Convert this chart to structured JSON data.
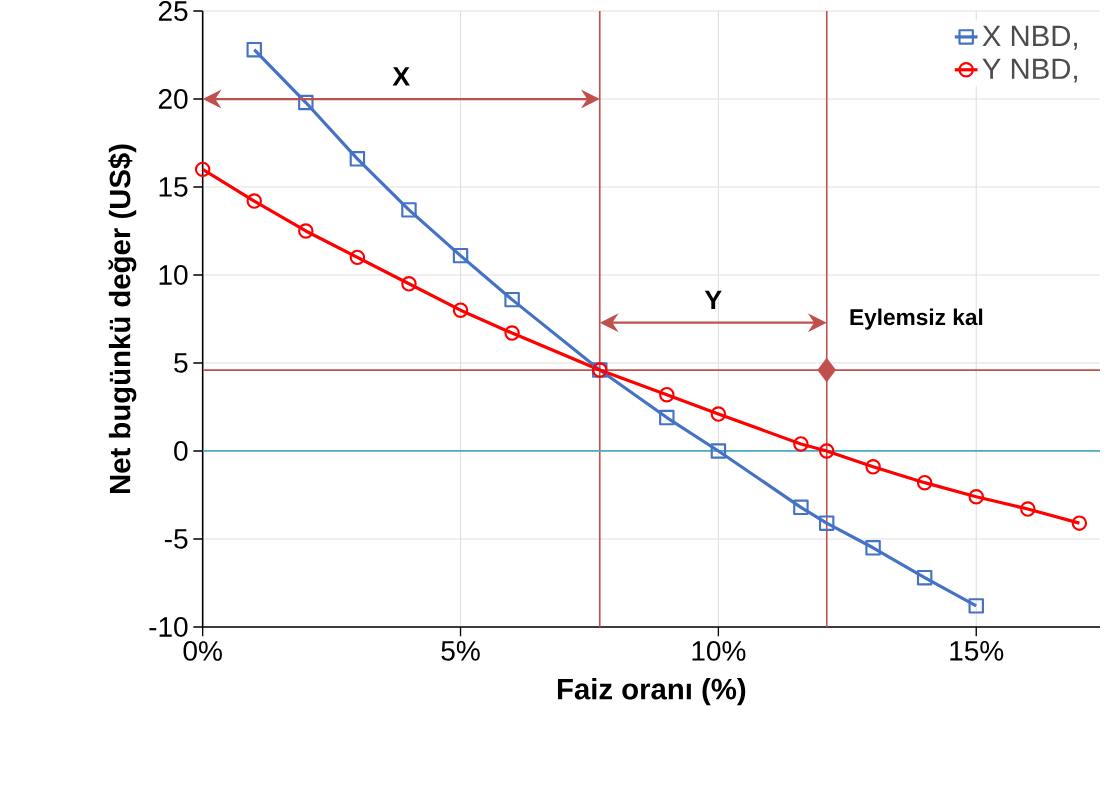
{
  "chart_data": {
    "type": "line",
    "xlabel": "Faiz oranı (%)",
    "ylabel": "Net bugünkü değer (US$)",
    "xlim": [
      0,
      17.4
    ],
    "ylim": [
      -10,
      25
    ],
    "xticks": [
      {
        "value": 0,
        "label": "0%"
      },
      {
        "value": 5,
        "label": "5%"
      },
      {
        "value": 10,
        "label": "10%"
      },
      {
        "value": 15,
        "label": "15%"
      }
    ],
    "yticks": [
      -10,
      -5,
      0,
      5,
      10,
      15,
      20,
      25
    ],
    "grid": true,
    "legend": "top right",
    "series": [
      {
        "name": "X NBD,",
        "color": "#4472c4",
        "marker": "square",
        "x": [
          1,
          2,
          3,
          4,
          5,
          6,
          7.7,
          9,
          10,
          11.6,
          12.1,
          13,
          14,
          15
        ],
        "values": [
          22.8,
          19.8,
          16.6,
          13.7,
          11.1,
          8.6,
          4.6,
          1.9,
          0,
          -3.2,
          -4.1,
          -5.5,
          -7.2,
          -8.8
        ]
      },
      {
        "name": "Y NBD,",
        "color": "#ff0000",
        "marker": "circle",
        "x": [
          0,
          1,
          2,
          3,
          4,
          5,
          6,
          7.7,
          9,
          10,
          11.6,
          12.1,
          13,
          14,
          15,
          16,
          17
        ],
        "values": [
          16.0,
          14.2,
          12.5,
          11.0,
          9.5,
          8.0,
          6.7,
          4.6,
          3.2,
          2.1,
          0.4,
          0,
          -0.9,
          -1.8,
          -2.6,
          -3.3,
          -4.1
        ]
      },
      {
        "type": "scatter",
        "color": "#c0504d",
        "marker": "diamond",
        "x": [
          12.1
        ],
        "values": [
          4.6
        ]
      }
    ],
    "ref_lines": [
      {
        "axis": "x",
        "value": 7.7,
        "color": "#c0504d"
      },
      {
        "axis": "x",
        "value": 12.1,
        "color": "#c0504d"
      },
      {
        "axis": "y",
        "value": 4.6,
        "color": "#c0504d"
      },
      {
        "axis": "y",
        "value": 0,
        "color": "#4bacc6"
      }
    ],
    "annotations": [
      "X",
      "Y",
      "Eylemsiz kal"
    ]
  }
}
